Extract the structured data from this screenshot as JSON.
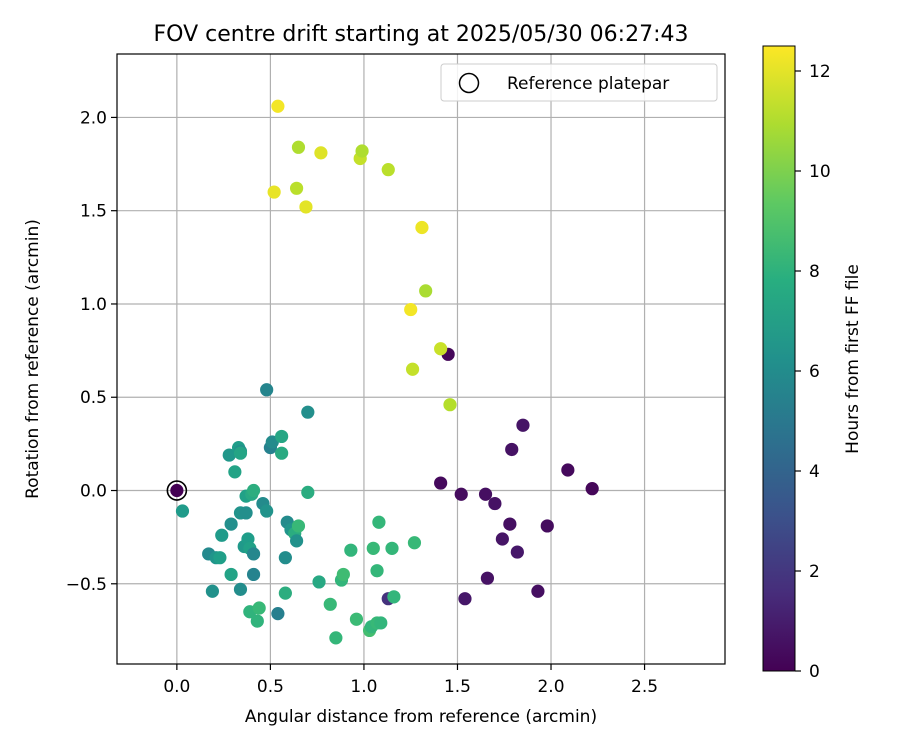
{
  "chart_data": {
    "type": "scatter",
    "title": "FOV centre drift starting at 2025/05/30 06:27:43",
    "xlabel": "Angular distance from reference (arcmin)",
    "ylabel": "Rotation from reference (arcmin)",
    "xlim": [
      -0.32,
      2.93
    ],
    "ylim": [
      -0.93,
      2.34
    ],
    "xticks": [
      0.0,
      0.5,
      1.0,
      1.5,
      2.0,
      2.5
    ],
    "xtick_labels": [
      "0.0",
      "0.5",
      "1.0",
      "1.5",
      "2.0",
      "2.5"
    ],
    "yticks": [
      -0.5,
      0.0,
      0.5,
      1.0,
      1.5,
      2.0
    ],
    "ytick_labels": [
      "−0.5",
      "0.0",
      "0.5",
      "1.0",
      "1.5",
      "2.0"
    ],
    "grid": true,
    "legend": {
      "placement": "top-right",
      "entries": [
        "Reference platepar"
      ]
    },
    "reference_point": {
      "x": 0.0,
      "y": 0.0
    },
    "colorbar": {
      "label": "Hours from first FF file",
      "range": [
        0,
        12.5
      ],
      "ticks": [
        0,
        2,
        4,
        6,
        8,
        10,
        12
      ],
      "tick_labels": [
        "0",
        "2",
        "4",
        "6",
        "8",
        "10",
        "12"
      ],
      "colormap": "viridis"
    },
    "points": [
      {
        "x": 0.0,
        "y": 0.0,
        "c": 0.0
      },
      {
        "x": 1.45,
        "y": 0.73,
        "c": 0.2
      },
      {
        "x": 1.41,
        "y": 0.04,
        "c": 0.3
      },
      {
        "x": 1.52,
        "y": -0.02,
        "c": 0.4
      },
      {
        "x": 1.65,
        "y": -0.02,
        "c": 0.5
      },
      {
        "x": 1.7,
        "y": -0.07,
        "c": 0.6
      },
      {
        "x": 1.78,
        "y": -0.18,
        "c": 0.5
      },
      {
        "x": 1.74,
        "y": -0.26,
        "c": 0.7
      },
      {
        "x": 1.82,
        "y": -0.33,
        "c": 0.8
      },
      {
        "x": 1.79,
        "y": 0.22,
        "c": 0.6
      },
      {
        "x": 1.85,
        "y": 0.35,
        "c": 0.7
      },
      {
        "x": 1.98,
        "y": -0.19,
        "c": 0.4
      },
      {
        "x": 2.09,
        "y": 0.11,
        "c": 0.3
      },
      {
        "x": 2.22,
        "y": 0.01,
        "c": 0.2
      },
      {
        "x": 1.93,
        "y": -0.54,
        "c": 0.5
      },
      {
        "x": 1.66,
        "y": -0.47,
        "c": 0.6
      },
      {
        "x": 1.54,
        "y": -0.58,
        "c": 0.8
      },
      {
        "x": 1.13,
        "y": -0.58,
        "c": 1.8
      },
      {
        "x": 0.03,
        "y": -0.11,
        "c": 6.8
      },
      {
        "x": 0.17,
        "y": -0.34,
        "c": 5.9
      },
      {
        "x": 0.19,
        "y": -0.54,
        "c": 6.3
      },
      {
        "x": 0.21,
        "y": -0.36,
        "c": 6.5
      },
      {
        "x": 0.23,
        "y": -0.36,
        "c": 7.0
      },
      {
        "x": 0.24,
        "y": -0.24,
        "c": 6.8
      },
      {
        "x": 0.28,
        "y": 0.19,
        "c": 6.6
      },
      {
        "x": 0.29,
        "y": -0.18,
        "c": 6.2
      },
      {
        "x": 0.29,
        "y": -0.45,
        "c": 7.2
      },
      {
        "x": 0.31,
        "y": 0.1,
        "c": 7.2
      },
      {
        "x": 0.33,
        "y": 0.23,
        "c": 6.9
      },
      {
        "x": 0.34,
        "y": 0.21,
        "c": 6.3
      },
      {
        "x": 0.34,
        "y": -0.12,
        "c": 6.4
      },
      {
        "x": 0.34,
        "y": -0.53,
        "c": 6.1
      },
      {
        "x": 0.34,
        "y": 0.2,
        "c": 7.3
      },
      {
        "x": 0.36,
        "y": -0.3,
        "c": 6.7
      },
      {
        "x": 0.37,
        "y": -0.12,
        "c": 6.2
      },
      {
        "x": 0.37,
        "y": -0.03,
        "c": 7.1
      },
      {
        "x": 0.38,
        "y": -0.26,
        "c": 6.9
      },
      {
        "x": 0.39,
        "y": -0.31,
        "c": 7.1
      },
      {
        "x": 0.39,
        "y": -0.65,
        "c": 8.1
      },
      {
        "x": 0.4,
        "y": -0.02,
        "c": 7.5
      },
      {
        "x": 0.41,
        "y": 0.0,
        "c": 7.8
      },
      {
        "x": 0.41,
        "y": -0.34,
        "c": 5.8
      },
      {
        "x": 0.41,
        "y": -0.45,
        "c": 5.6
      },
      {
        "x": 0.43,
        "y": -0.7,
        "c": 8.1
      },
      {
        "x": 0.44,
        "y": -0.63,
        "c": 8.4
      },
      {
        "x": 0.46,
        "y": -0.07,
        "c": 6.0
      },
      {
        "x": 0.48,
        "y": 0.54,
        "c": 5.7
      },
      {
        "x": 0.48,
        "y": -0.11,
        "c": 6.4
      },
      {
        "x": 0.5,
        "y": 0.23,
        "c": 5.5
      },
      {
        "x": 0.51,
        "y": 0.26,
        "c": 6.0
      },
      {
        "x": 0.54,
        "y": -0.66,
        "c": 5.4
      },
      {
        "x": 0.56,
        "y": 0.29,
        "c": 7.4
      },
      {
        "x": 0.56,
        "y": 0.2,
        "c": 7.6
      },
      {
        "x": 0.58,
        "y": -0.55,
        "c": 7.8
      },
      {
        "x": 0.58,
        "y": -0.36,
        "c": 6.1
      },
      {
        "x": 0.59,
        "y": -0.17,
        "c": 6.0
      },
      {
        "x": 0.61,
        "y": -0.21,
        "c": 6.5
      },
      {
        "x": 0.63,
        "y": -0.23,
        "c": 7.7
      },
      {
        "x": 0.64,
        "y": -0.27,
        "c": 6.3
      },
      {
        "x": 0.65,
        "y": -0.19,
        "c": 8.4
      },
      {
        "x": 0.7,
        "y": 0.42,
        "c": 6.2
      },
      {
        "x": 0.7,
        "y": -0.01,
        "c": 7.7
      },
      {
        "x": 0.76,
        "y": -0.49,
        "c": 7.5
      },
      {
        "x": 0.82,
        "y": -0.61,
        "c": 8.4
      },
      {
        "x": 0.85,
        "y": -0.79,
        "c": 8.3
      },
      {
        "x": 0.88,
        "y": -0.48,
        "c": 8.2
      },
      {
        "x": 0.89,
        "y": -0.45,
        "c": 8.6
      },
      {
        "x": 0.93,
        "y": -0.32,
        "c": 8.2
      },
      {
        "x": 0.96,
        "y": -0.69,
        "c": 8.5
      },
      {
        "x": 1.03,
        "y": -0.75,
        "c": 8.7
      },
      {
        "x": 1.04,
        "y": -0.73,
        "c": 8.2
      },
      {
        "x": 1.05,
        "y": -0.31,
        "c": 8.4
      },
      {
        "x": 1.07,
        "y": -0.43,
        "c": 8.3
      },
      {
        "x": 1.07,
        "y": -0.71,
        "c": 8.4
      },
      {
        "x": 1.08,
        "y": -0.17,
        "c": 8.3
      },
      {
        "x": 1.09,
        "y": -0.71,
        "c": 8.2
      },
      {
        "x": 1.15,
        "y": -0.31,
        "c": 8.3
      },
      {
        "x": 1.16,
        "y": -0.57,
        "c": 8.2
      },
      {
        "x": 1.27,
        "y": -0.28,
        "c": 8.4
      },
      {
        "x": 0.54,
        "y": 2.06,
        "c": 12.3
      },
      {
        "x": 0.52,
        "y": 1.6,
        "c": 12.1
      },
      {
        "x": 0.64,
        "y": 1.62,
        "c": 11.2
      },
      {
        "x": 0.65,
        "y": 1.84,
        "c": 11.0
      },
      {
        "x": 0.69,
        "y": 1.52,
        "c": 12.0
      },
      {
        "x": 0.77,
        "y": 1.81,
        "c": 11.9
      },
      {
        "x": 0.98,
        "y": 1.78,
        "c": 11.4
      },
      {
        "x": 0.99,
        "y": 1.82,
        "c": 11.0
      },
      {
        "x": 1.13,
        "y": 1.72,
        "c": 11.2
      },
      {
        "x": 1.31,
        "y": 1.41,
        "c": 12.2
      },
      {
        "x": 1.33,
        "y": 1.07,
        "c": 10.9
      },
      {
        "x": 1.25,
        "y": 0.97,
        "c": 12.3
      },
      {
        "x": 1.26,
        "y": 0.65,
        "c": 11.4
      },
      {
        "x": 1.41,
        "y": 0.76,
        "c": 11.5
      },
      {
        "x": 1.46,
        "y": 0.46,
        "c": 11.1
      }
    ]
  }
}
